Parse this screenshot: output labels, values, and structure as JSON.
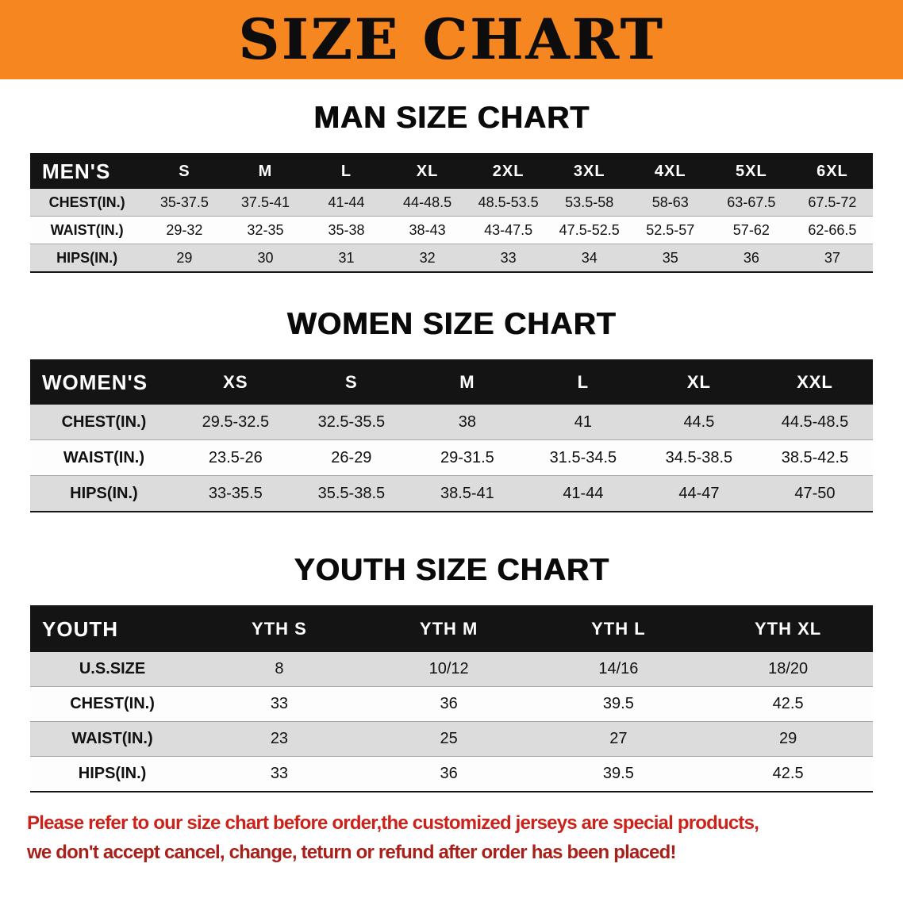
{
  "banner": {
    "title": "SIZE CHART"
  },
  "colors": {
    "banner_bg": "#F6861F",
    "table_header_bar": "#141414",
    "stripe_gray": "#DCDCDC",
    "notice_red_line1": "#CB231B",
    "notice_red_line2": "#A8201A"
  },
  "sections": [
    {
      "id": "men",
      "heading": "MAN SIZE CHART",
      "table": {
        "header": [
          "MEN'S",
          "S",
          "M",
          "L",
          "XL",
          "2XL",
          "3XL",
          "4XL",
          "5XL",
          "6XL"
        ],
        "rows": [
          {
            "label": "CHEST(IN.)",
            "values": [
              "35-37.5",
              "37.5-41",
              "41-44",
              "44-48.5",
              "48.5-53.5",
              "53.5-58",
              "58-63",
              "63-67.5",
              "67.5-72"
            ]
          },
          {
            "label": "WAIST(IN.)",
            "values": [
              "29-32",
              "32-35",
              "35-38",
              "38-43",
              "43-47.5",
              "47.5-52.5",
              "52.5-57",
              "57-62",
              "62-66.5"
            ]
          },
          {
            "label": "HIPS(IN.)",
            "values": [
              "29",
              "30",
              "31",
              "32",
              "33",
              "34",
              "35",
              "36",
              "37"
            ]
          }
        ]
      }
    },
    {
      "id": "women",
      "heading": "WOMEN SIZE CHART",
      "table": {
        "header": [
          "WOMEN'S",
          "XS",
          "S",
          "M",
          "L",
          "XL",
          "XXL"
        ],
        "rows": [
          {
            "label": "CHEST(IN.)",
            "values": [
              "29.5-32.5",
              "32.5-35.5",
              "38",
              "41",
              "44.5",
              "44.5-48.5"
            ]
          },
          {
            "label": "WAIST(IN.)",
            "values": [
              "23.5-26",
              "26-29",
              "29-31.5",
              "31.5-34.5",
              "34.5-38.5",
              "38.5-42.5"
            ]
          },
          {
            "label": "HIPS(IN.)",
            "values": [
              "33-35.5",
              "35.5-38.5",
              "38.5-41",
              "41-44",
              "44-47",
              "47-50"
            ]
          }
        ]
      }
    },
    {
      "id": "youth",
      "heading": "YOUTH SIZE CHART",
      "table": {
        "header": [
          "YOUTH",
          "YTH S",
          "YTH M",
          "YTH L",
          "YTH XL"
        ],
        "rows": [
          {
            "label": "U.S.SIZE",
            "values": [
              "8",
              "10/12",
              "14/16",
              "18/20"
            ]
          },
          {
            "label": "CHEST(IN.)",
            "values": [
              "33",
              "36",
              "39.5",
              "42.5"
            ]
          },
          {
            "label": "WAIST(IN.)",
            "values": [
              "23",
              "25",
              "27",
              "29"
            ]
          },
          {
            "label": "HIPS(IN.)",
            "values": [
              "33",
              "36",
              "39.5",
              "42.5"
            ]
          }
        ]
      }
    }
  ],
  "footer": {
    "line1": "Please refer to our size chart before order,the customized jerseys are special products,",
    "line2": "we don't accept cancel, change, teturn or refund after order has been placed!"
  }
}
